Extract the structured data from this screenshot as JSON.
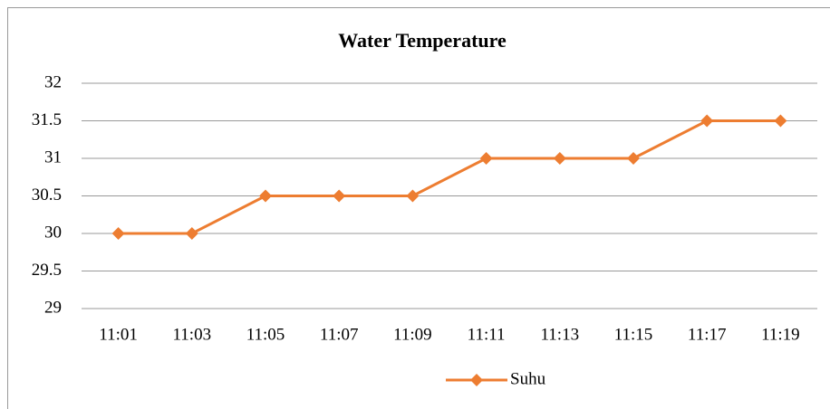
{
  "chart_data": {
    "type": "line",
    "title": "Water Temperature",
    "categories": [
      "11:01",
      "11:03",
      "11:05",
      "11:07",
      "11:09",
      "11:11",
      "11:13",
      "11:15",
      "11:17",
      "11:19"
    ],
    "series": [
      {
        "name": "Suhu",
        "color": "#ed7d31",
        "values": [
          30,
          30,
          30.5,
          30.5,
          30.5,
          31,
          31,
          31,
          31.5,
          31.5
        ]
      }
    ],
    "ylim": [
      29,
      32
    ],
    "yticks": [
      29,
      29.5,
      30,
      30.5,
      31,
      31.5,
      32
    ],
    "grid": true,
    "legend": "bottom"
  }
}
